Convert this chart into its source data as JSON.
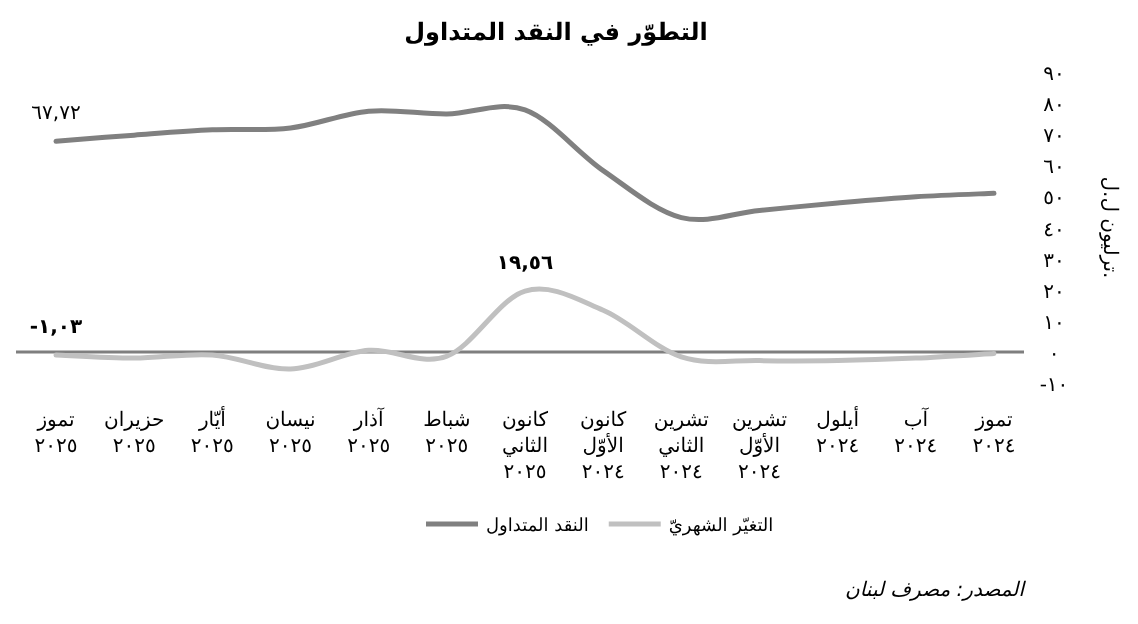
{
  "chart_data": {
    "type": "line",
    "title": "التطوّر في النقد المتداول",
    "ylabel": "ترليون ل.ل.",
    "categories": [
      "تموز ٢٠٢٥",
      "حزيران ٢٠٢٥",
      "أيّار ٢٠٢٥",
      "نيسان ٢٠٢٥",
      "آذار ٢٠٢٥",
      "شباط ٢٠٢٥",
      "كانون الثاني ٢٠٢٥",
      "كانون الأوّل ٢٠٢٤",
      "تشرين الثاني ٢٠٢٤",
      "تشرين الأوّل ٢٠٢٤",
      "أيلول ٢٠٢٤",
      "آب ٢٠٢٤",
      "تموز ٢٠٢٤"
    ],
    "series": [
      {
        "name": "النقد المتداول",
        "color": "#808080",
        "values": [
          67.72,
          69.7,
          71.4,
          72,
          77.4,
          76.5,
          77.8,
          58.3,
          43.2,
          45.5,
          47.9,
          49.9,
          51
        ],
        "value_labels": [
          "٦٧,٧٢",
          null,
          null,
          null,
          null,
          null,
          null,
          null,
          null,
          null,
          null,
          null,
          null
        ]
      },
      {
        "name": "التغيّر الشهريّ",
        "color": "#c0c0c0",
        "values": [
          -1.03,
          -2,
          -1,
          -5.5,
          0.5,
          -1.4,
          19.56,
          13.4,
          -1.6,
          -2.8,
          -2.8,
          -2,
          -0.5
        ],
        "value_labels": [
          "-١,٠٣",
          null,
          null,
          null,
          null,
          null,
          "١٩,٥٦",
          null,
          null,
          null,
          null,
          null,
          null
        ]
      }
    ],
    "ylim": [
      -10,
      90
    ],
    "yticks": [
      {
        "value": -10,
        "label": "-١٠"
      },
      {
        "value": 0,
        "label": "٠"
      },
      {
        "value": 10,
        "label": "١٠"
      },
      {
        "value": 20,
        "label": "٢٠"
      },
      {
        "value": 30,
        "label": "٣٠"
      },
      {
        "value": 40,
        "label": "٤٠"
      },
      {
        "value": 50,
        "label": "٥٠"
      },
      {
        "value": 60,
        "label": "٦٠"
      },
      {
        "value": 70,
        "label": "٧٠"
      },
      {
        "value": 80,
        "label": "٨٠"
      },
      {
        "value": 90,
        "label": "٩٠"
      }
    ],
    "legend": "bottom",
    "line_style": "solid",
    "annotations": [
      "المصدر: مصرف لبنان"
    ]
  }
}
